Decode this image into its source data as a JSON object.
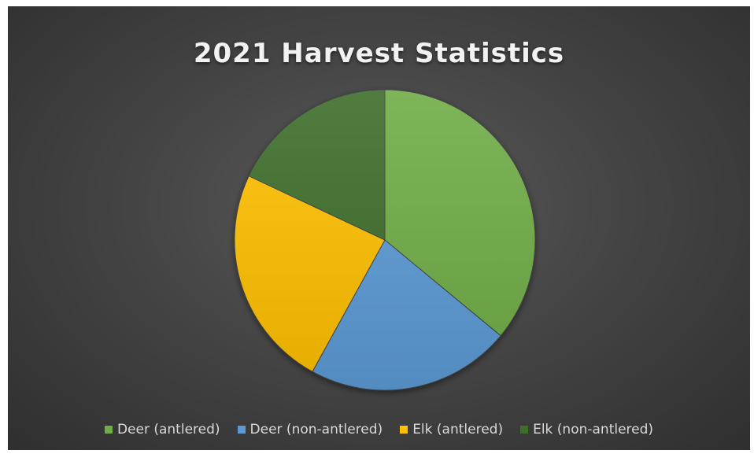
{
  "chart_data": {
    "type": "pie",
    "title": "2021 Harvest Statistics",
    "categories": [
      "Deer (antlered)",
      "Deer (non-antlered)",
      "Elk (antlered)",
      "Elk (non-antlered)"
    ],
    "values": [
      36,
      22,
      24,
      18
    ],
    "colors": [
      "#70ad47",
      "#5b9bd5",
      "#ffc000",
      "#3e6e29"
    ],
    "legend_position": "bottom",
    "start_angle": "top",
    "direction": "clockwise"
  }
}
